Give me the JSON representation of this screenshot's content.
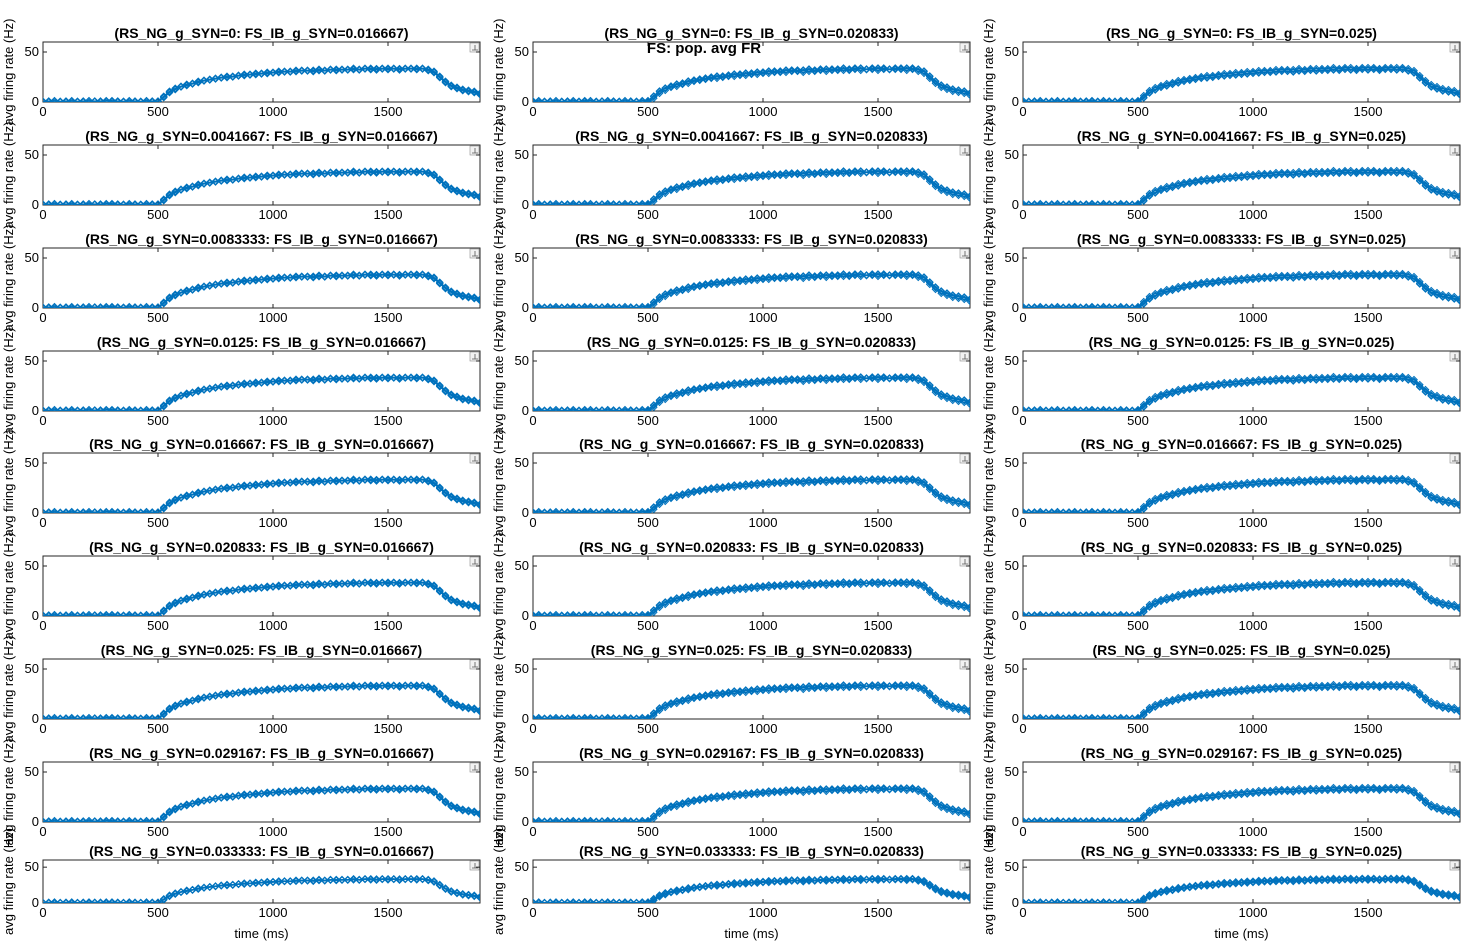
{
  "figure": {
    "suptitle": "FS: pop. avg FR",
    "xlabel": "time (ms)",
    "ylabel": "avg firing rate (Hz)"
  },
  "chart_data": {
    "type": "line",
    "marker": "diamond-open",
    "series_color": "#0072BD",
    "xlim": [
      0,
      1900
    ],
    "ylim": [
      0,
      60
    ],
    "xticks": [
      0,
      500,
      1000,
      1500
    ],
    "yticks": [
      0,
      50
    ],
    "grid": false,
    "rows": 9,
    "cols": 3,
    "panel_titles": [
      "(RS_NG_g_SYN=0: FS_IB_g_SYN=0.016667)",
      "(RS_NG_g_SYN=0: FS_IB_g_SYN=0.020833)",
      "(RS_NG_g_SYN=0: FS_IB_g_SYN=0.025)",
      "(RS_NG_g_SYN=0.0041667: FS_IB_g_SYN=0.016667)",
      "(RS_NG_g_SYN=0.0041667: FS_IB_g_SYN=0.020833)",
      "(RS_NG_g_SYN=0.0041667: FS_IB_g_SYN=0.025)",
      "(RS_NG_g_SYN=0.0083333: FS_IB_g_SYN=0.016667)",
      "(RS_NG_g_SYN=0.0083333: FS_IB_g_SYN=0.020833)",
      "(RS_NG_g_SYN=0.0083333: FS_IB_g_SYN=0.025)",
      "(RS_NG_g_SYN=0.0125: FS_IB_g_SYN=0.016667)",
      "(RS_NG_g_SYN=0.0125: FS_IB_g_SYN=0.020833)",
      "(RS_NG_g_SYN=0.0125: FS_IB_g_SYN=0.025)",
      "(RS_NG_g_SYN=0.016667: FS_IB_g_SYN=0.016667)",
      "(RS_NG_g_SYN=0.016667: FS_IB_g_SYN=0.020833)",
      "(RS_NG_g_SYN=0.016667: FS_IB_g_SYN=0.025)",
      "(RS_NG_g_SYN=0.020833: FS_IB_g_SYN=0.016667)",
      "(RS_NG_g_SYN=0.020833: FS_IB_g_SYN=0.020833)",
      "(RS_NG_g_SYN=0.020833: FS_IB_g_SYN=0.025)",
      "(RS_NG_g_SYN=0.025: FS_IB_g_SYN=0.016667)",
      "(RS_NG_g_SYN=0.025: FS_IB_g_SYN=0.020833)",
      "(RS_NG_g_SYN=0.025: FS_IB_g_SYN=0.025)",
      "(RS_NG_g_SYN=0.029167: FS_IB_g_SYN=0.016667)",
      "(RS_NG_g_SYN=0.029167: FS_IB_g_SYN=0.020833)",
      "(RS_NG_g_SYN=0.029167: FS_IB_g_SYN=0.025)",
      "(RS_NG_g_SYN=0.033333: FS_IB_g_SYN=0.016667)",
      "(RS_NG_g_SYN=0.033333: FS_IB_g_SYN=0.020833)",
      "(RS_NG_g_SYN=0.033333: FS_IB_g_SYN=0.025)"
    ],
    "x": [
      0,
      25,
      50,
      75,
      100,
      125,
      150,
      175,
      200,
      225,
      250,
      275,
      300,
      325,
      350,
      375,
      400,
      425,
      450,
      475,
      500,
      525,
      550,
      575,
      600,
      625,
      650,
      675,
      700,
      725,
      750,
      775,
      800,
      825,
      850,
      875,
      900,
      925,
      950,
      975,
      1000,
      1025,
      1050,
      1075,
      1100,
      1125,
      1150,
      1175,
      1200,
      1225,
      1250,
      1275,
      1300,
      1325,
      1350,
      1375,
      1400,
      1425,
      1450,
      1475,
      1500,
      1525,
      1550,
      1575,
      1600,
      1625,
      1650,
      1675,
      1700,
      1725,
      1750,
      1775,
      1800,
      1825,
      1850,
      1875,
      1900
    ],
    "traces": [
      [
        0,
        1,
        0,
        0,
        1,
        0,
        0,
        1,
        0,
        1,
        1,
        0,
        0,
        1,
        0,
        0,
        1,
        0,
        0,
        1,
        1,
        5,
        10,
        13,
        15,
        17,
        18,
        20,
        21,
        22,
        23,
        24,
        25,
        25,
        26,
        27,
        27,
        28,
        28,
        29,
        29,
        30,
        30,
        30,
        31,
        31,
        31,
        31,
        32,
        31,
        32,
        32,
        32,
        32,
        33,
        32,
        33,
        33,
        32,
        33,
        33,
        33,
        32,
        33,
        33,
        33,
        33,
        32,
        30,
        25,
        20,
        16,
        14,
        12,
        11,
        10,
        8
      ],
      [
        0,
        0,
        1,
        0,
        0,
        1,
        0,
        0,
        1,
        0,
        0,
        1,
        1,
        0,
        0,
        1,
        0,
        0,
        1,
        0,
        0,
        4,
        9,
        12,
        15,
        16,
        18,
        19,
        21,
        22,
        23,
        24,
        24,
        25,
        26,
        26,
        27,
        27,
        28,
        28,
        29,
        29,
        30,
        30,
        30,
        31,
        31,
        30,
        31,
        31,
        32,
        31,
        32,
        32,
        32,
        32,
        33,
        32,
        33,
        33,
        32,
        33,
        33,
        33,
        33,
        32,
        33,
        31,
        29,
        24,
        19,
        15,
        13,
        11,
        10,
        9,
        7
      ],
      [
        1,
        0,
        0,
        1,
        0,
        0,
        1,
        0,
        0,
        1,
        0,
        0,
        1,
        0,
        1,
        0,
        0,
        1,
        0,
        0,
        1,
        6,
        11,
        14,
        16,
        18,
        19,
        21,
        22,
        23,
        24,
        25,
        26,
        26,
        27,
        28,
        28,
        29,
        29,
        30,
        30,
        31,
        31,
        31,
        32,
        32,
        32,
        32,
        33,
        32,
        33,
        33,
        33,
        33,
        34,
        33,
        34,
        34,
        33,
        34,
        34,
        34,
        33,
        34,
        34,
        34,
        34,
        33,
        31,
        26,
        21,
        17,
        15,
        13,
        12,
        11,
        9
      ]
    ]
  }
}
